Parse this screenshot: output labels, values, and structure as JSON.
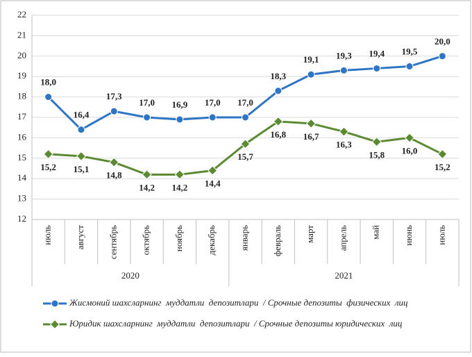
{
  "chart_data": {
    "type": "line",
    "categories": [
      "июль",
      "август",
      "сентябрь",
      "октябрь",
      "ноябрь",
      "декабрь",
      "январь",
      "февраль",
      "март",
      "апрель",
      "май",
      "июнь",
      "июль"
    ],
    "x_groups": [
      "2020",
      "2021"
    ],
    "series": [
      {
        "name": "Жисмоний шахсларнинг  муддатли  депозитлари  / Срочные депозиты  физических  лиц",
        "color": "#2e75c6",
        "values": [
          18.0,
          16.4,
          17.3,
          17.0,
          16.9,
          17.0,
          17.0,
          18.3,
          19.1,
          19.3,
          19.4,
          19.5,
          20.0
        ],
        "value_labels": [
          "18,0",
          "16,4",
          "17,3",
          "17,0",
          "16,9",
          "17,0",
          "17,0",
          "18,3",
          "19,1",
          "19,3",
          "19,4",
          "19,5",
          "20,0"
        ]
      },
      {
        "name": "Юридик шахсларнинг  муддатли  депозитлари  / Срочные депозиты юридических  лиц",
        "color": "#5b8a33",
        "values": [
          15.2,
          15.1,
          14.8,
          14.2,
          14.2,
          14.4,
          15.7,
          16.8,
          16.7,
          16.3,
          15.8,
          16.0,
          15.2
        ],
        "value_labels": [
          "15,2",
          "15,1",
          "14,8",
          "14,2",
          "14,2",
          "14,4",
          "15,7",
          "16,8",
          "16,7",
          "16,3",
          "15,8",
          "16,0",
          "15,2"
        ]
      }
    ],
    "ylim": [
      12,
      22
    ],
    "yticks": [
      12,
      13,
      14,
      15,
      16,
      17,
      18,
      19,
      20,
      21,
      22
    ],
    "grid": true,
    "legend": "bottom"
  }
}
